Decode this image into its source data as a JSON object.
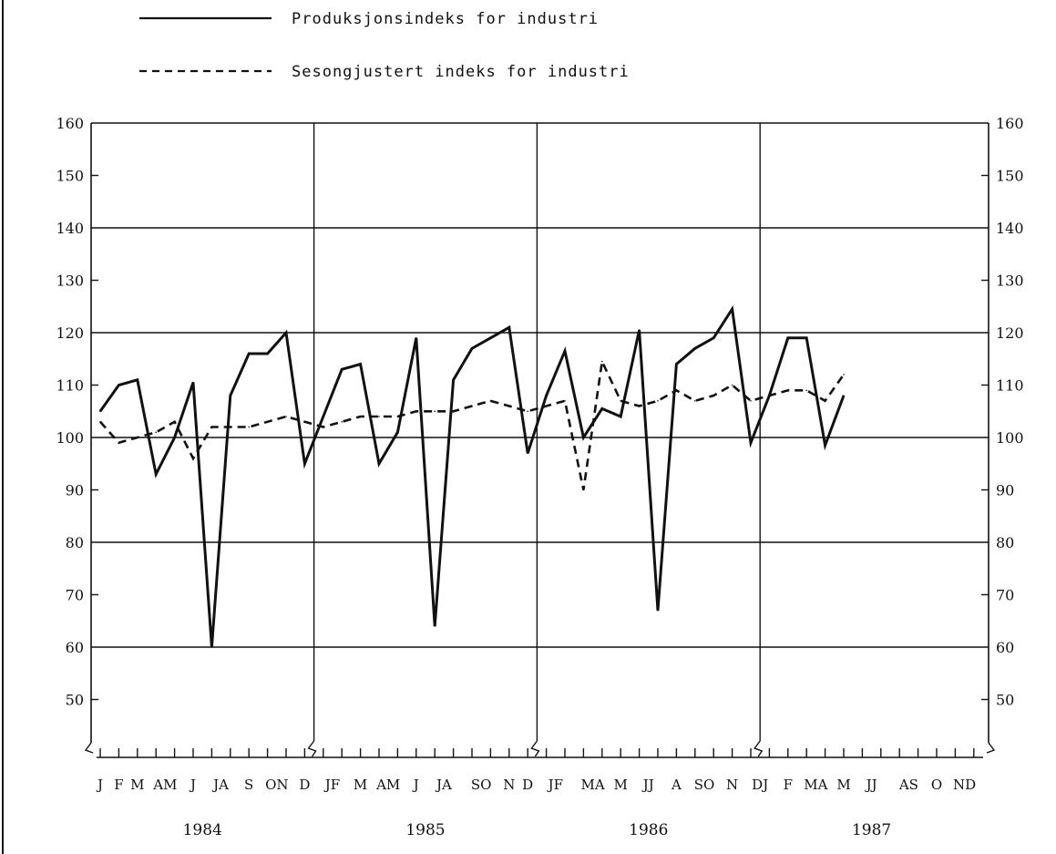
{
  "chart_data": {
    "type": "line",
    "ylim": [
      40,
      160
    ],
    "yticks": [
      50,
      60,
      70,
      80,
      90,
      100,
      110,
      120,
      130,
      140,
      150,
      160
    ],
    "grid": "major",
    "legend": {
      "placement": "top-left",
      "entries": [
        {
          "label": "Produksjonsindeks for industri",
          "style": "solid"
        },
        {
          "label": "Sesongjustert indeks for industri",
          "style": "dashed"
        }
      ]
    },
    "years": [
      "1984",
      "1985",
      "1986",
      "1987"
    ],
    "x_month_labels": [
      {
        "label": "J",
        "m": 0
      },
      {
        "label": "F",
        "m": 1
      },
      {
        "label": "M",
        "m": 2
      },
      {
        "label": "AM",
        "m": 3.5
      },
      {
        "label": "J",
        "m": 5
      },
      {
        "label": "JA",
        "m": 6.5
      },
      {
        "label": "S",
        "m": 8
      },
      {
        "label": "ON",
        "m": 9.5
      },
      {
        "label": "D",
        "m": 11
      },
      {
        "label": "JF",
        "m": 12.5
      },
      {
        "label": "M",
        "m": 14
      },
      {
        "label": "AM",
        "m": 15.5
      },
      {
        "label": "J",
        "m": 17
      },
      {
        "label": "JA",
        "m": 18.5
      },
      {
        "label": "SO",
        "m": 20.5
      },
      {
        "label": "N",
        "m": 22
      },
      {
        "label": "D",
        "m": 23
      },
      {
        "label": "JF",
        "m": 24.5
      },
      {
        "label": "MA",
        "m": 26.5
      },
      {
        "label": "M",
        "m": 28
      },
      {
        "label": "JJ",
        "m": 29.5
      },
      {
        "label": "A",
        "m": 31
      },
      {
        "label": "SO",
        "m": 32.5
      },
      {
        "label": "N",
        "m": 34
      },
      {
        "label": "DJ",
        "m": 35.5
      },
      {
        "label": "F",
        "m": 37
      },
      {
        "label": "MA",
        "m": 38.5
      },
      {
        "label": "M",
        "m": 40
      },
      {
        "label": "JJ",
        "m": 41.5
      },
      {
        "label": "AS",
        "m": 43.5
      },
      {
        "label": "O",
        "m": 45
      },
      {
        "label": "ND",
        "m": 46.5
      }
    ],
    "series": [
      {
        "style": "solid",
        "values": [
          105,
          110,
          111,
          93,
          100,
          110.5,
          60,
          108,
          116,
          116,
          120,
          95,
          104,
          113,
          114,
          95,
          101,
          119,
          64,
          111,
          117,
          119,
          121,
          97,
          108,
          116.5,
          100,
          105.5,
          104,
          120.5,
          67,
          114,
          117,
          119,
          124.5,
          99,
          108,
          119,
          119,
          98.5,
          108
        ]
      },
      {
        "style": "dashed",
        "values": [
          103,
          99,
          100,
          101,
          103,
          96,
          102,
          102,
          102,
          103,
          104,
          103,
          102,
          103,
          104,
          104,
          104,
          105,
          105,
          105,
          106,
          107,
          106,
          105,
          106,
          107,
          90,
          114.5,
          107,
          106,
          107,
          109,
          107,
          108,
          110,
          107,
          108,
          109,
          109,
          107,
          112
        ]
      }
    ]
  }
}
